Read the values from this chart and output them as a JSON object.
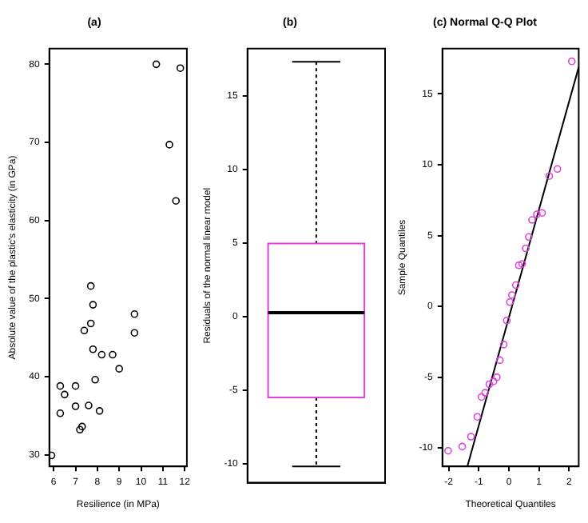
{
  "chart_data": [
    {
      "type": "scatter",
      "title": "(a)",
      "xlabel": "Resilience (in MPa)",
      "ylabel": "Absolute value of the plastic's elasticity (in GPa)",
      "color": "#000000",
      "marker": "circle",
      "grid": false,
      "legend": false,
      "x": [
        5.9,
        6.3,
        6.3,
        6.5,
        7.0,
        7.0,
        7.2,
        7.3,
        7.4,
        7.6,
        7.7,
        7.7,
        7.8,
        7.8,
        7.9,
        8.1,
        8.2,
        8.7,
        9.0,
        9.7,
        9.7,
        10.7,
        11.3,
        11.6,
        11.8
      ],
      "values": [
        29.9,
        35.3,
        38.8,
        37.7,
        38.8,
        36.2,
        33.2,
        33.6,
        45.9,
        36.3,
        51.6,
        46.8,
        49.2,
        43.5,
        39.6,
        35.6,
        42.8,
        42.8,
        41.0,
        48.0,
        45.6,
        80.0,
        69.7,
        62.5,
        79.5
      ],
      "xlim": [
        5.8,
        12.1
      ],
      "ylim": [
        28.5,
        82
      ],
      "xticks": [
        6,
        7,
        8,
        9,
        10,
        11,
        12
      ],
      "yticks": [
        30,
        40,
        50,
        60,
        70,
        80
      ]
    },
    {
      "type": "box",
      "title": "(b)",
      "ylabel": "Residuals of the normal linear model",
      "categories": [
        null
      ],
      "color": "#e040e0",
      "grid": false,
      "legend": false,
      "boxes": [
        {
          "low": -10.2,
          "q1": -5.5,
          "median": 0.25,
          "q3": 4.95,
          "high": 17.3
        }
      ],
      "ylim": [
        -11.3,
        18.2
      ],
      "yticks": [
        -10,
        -5,
        0,
        5,
        10,
        15
      ]
    },
    {
      "type": "scatter",
      "title": "(c) Normal Q-Q Plot",
      "xlabel": "Theoretical Quantiles",
      "ylabel": "Sample Quantiles",
      "grid": false,
      "legend": false,
      "series": [
        {
          "type": "scatter",
          "color": "#e040e0",
          "marker": "circle",
          "x": [
            -2.02,
            -1.55,
            -1.26,
            -1.05,
            -0.91,
            -0.79,
            -0.65,
            -0.51,
            -0.4,
            -0.3,
            -0.17,
            -0.07,
            0.03,
            0.1,
            0.23,
            0.33,
            0.44,
            0.56,
            0.66,
            0.77,
            0.93,
            1.1,
            1.34,
            1.61,
            2.09
          ],
          "values": [
            -10.2,
            -9.9,
            -9.2,
            -7.8,
            -6.4,
            -6.1,
            -5.5,
            -5.3,
            -5.0,
            -3.8,
            -2.7,
            -1.0,
            0.3,
            0.8,
            1.5,
            2.9,
            3.0,
            4.1,
            4.9,
            6.1,
            6.5,
            6.6,
            9.2,
            9.7,
            17.3
          ]
        },
        {
          "type": "line",
          "color": "#000000",
          "marker": "none",
          "x": [
            -1.38,
            2.32
          ],
          "values": [
            -11.3,
            16.9
          ]
        }
      ],
      "xlim": [
        -2.21,
        2.32
      ],
      "ylim": [
        -11.3,
        18.2
      ],
      "xticks": [
        -2,
        -1,
        0,
        1,
        2
      ],
      "yticks": [
        -10,
        -5,
        0,
        5,
        10,
        15
      ]
    }
  ]
}
